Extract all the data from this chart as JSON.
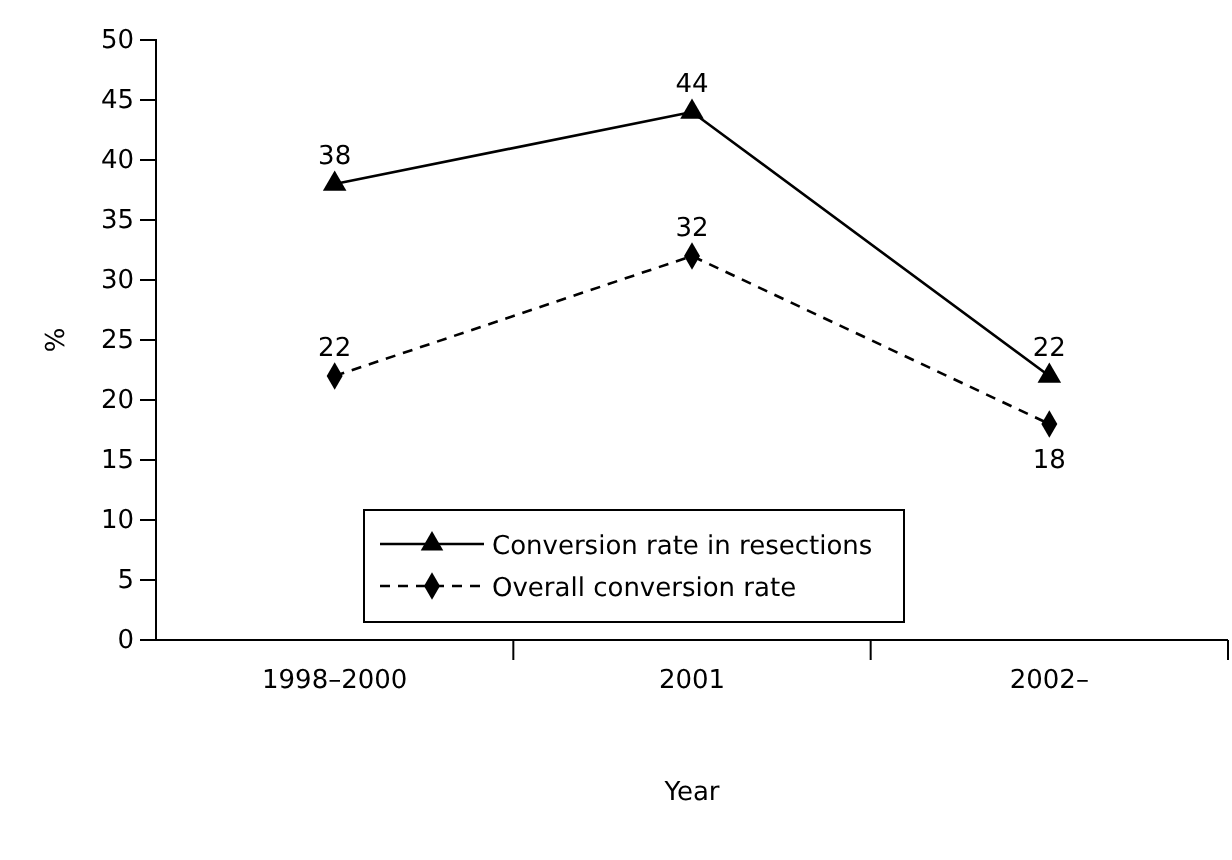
{
  "chart_data": {
    "type": "line",
    "xlabel": "Year",
    "ylabel": "%",
    "categories": [
      "1998–2000",
      "2001",
      "2002–"
    ],
    "series": [
      {
        "name": "Conversion rate in resections",
        "color": "#000000",
        "values": [
          38,
          44,
          22
        ],
        "marker": "triangle",
        "line_style": "solid"
      },
      {
        "name": "Overall conversion rate",
        "color": "#000000",
        "values": [
          22,
          32,
          18
        ],
        "marker": "diamond",
        "line_style": "dashed"
      }
    ],
    "ylim": [
      0,
      50
    ],
    "yticks": [
      0,
      5,
      10,
      15,
      20,
      25,
      30,
      35,
      40,
      45,
      50
    ],
    "data_labels": true,
    "legend": "bottom",
    "grid": false
  }
}
